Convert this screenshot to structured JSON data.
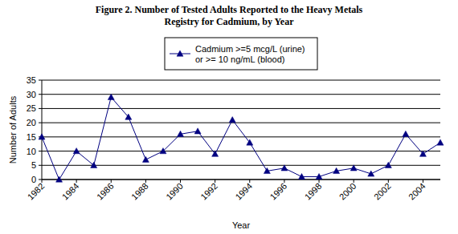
{
  "chart_data": {
    "type": "line",
    "title": "Figure 2. Number of Tested Adults Reported to the Heavy Metals Registry for Cadmium, by Year",
    "x_label": "Year",
    "y_label": "Number of Adults",
    "x": [
      1982,
      1983,
      1984,
      1985,
      1986,
      1987,
      1988,
      1989,
      1990,
      1991,
      1992,
      1993,
      1994,
      1995,
      1996,
      1997,
      1998,
      1999,
      2000,
      2001,
      2002,
      2003,
      2004,
      2005
    ],
    "series": [
      {
        "name": "Cadmium >=5 mcg/L (urine) or >= 10 ng/mL (blood)",
        "color": "#000080",
        "marker": "triangle",
        "line_style": "solid",
        "values": [
          15,
          0,
          10,
          5,
          29,
          22,
          7,
          10,
          16,
          17,
          9,
          21,
          13,
          3,
          4,
          1,
          1,
          3,
          4,
          2,
          5,
          16,
          9,
          13
        ]
      }
    ],
    "xlim": [
      1982,
      2005
    ],
    "xticks": [
      1982,
      1984,
      1986,
      1988,
      1990,
      1992,
      1994,
      1996,
      1998,
      2000,
      2002,
      2004
    ],
    "ylim": [
      0,
      35
    ],
    "yticks": [
      0,
      5,
      10,
      15,
      20,
      25,
      30,
      35
    ],
    "grid": true,
    "legend": "top"
  }
}
